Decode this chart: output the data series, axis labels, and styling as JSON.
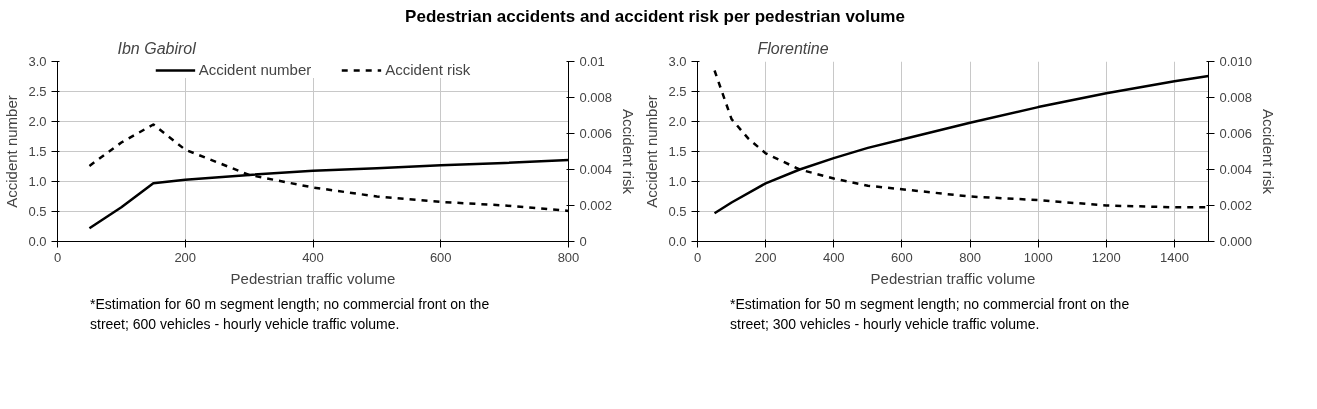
{
  "chart_data": [
    {
      "type": "line",
      "title": "Pedestrian accidents and accident risk per pedestrian volume",
      "subtitle": "Ibn Gabirol",
      "xlabel": "Pedestrian traffic volume",
      "ylabel": "Accident number",
      "y2label": "Accident risk",
      "annotations": [
        "*Estimation for 60 m segment length; no commercial front on the street; 600 vehicles - hourly vehicle traffic volume."
      ],
      "xlim": [
        0,
        800
      ],
      "xticks": [
        0,
        200,
        400,
        600,
        800
      ],
      "ylim": [
        0,
        3
      ],
      "yticks": [
        {
          "value": 0,
          "label": "0.0"
        },
        {
          "value": 0.5,
          "label": "0.5"
        },
        {
          "value": 1,
          "label": "1.0"
        },
        {
          "value": 1.5,
          "label": "1.5"
        },
        {
          "value": 2,
          "label": "2.0"
        },
        {
          "value": 2.5,
          "label": "2.5"
        },
        {
          "value": 3,
          "label": "3.0"
        }
      ],
      "y2lim": [
        0,
        0.01
      ],
      "y2ticks": [
        0,
        0.002,
        0.004,
        0.006,
        0.008,
        0.01
      ],
      "grid": true,
      "legend": "top",
      "series": [
        {
          "name": "Accident number",
          "color": "#000000",
          "line_style": "solid",
          "x": [
            50,
            100,
            150,
            200,
            300,
            400,
            500,
            600,
            700,
            800
          ],
          "values": [
            0.22,
            0.57,
            0.97,
            1.03,
            1.11,
            1.18,
            1.22,
            1.27,
            1.31,
            1.36
          ]
        },
        {
          "name": "Accident risk",
          "color": "#000000",
          "line_style": "dashed",
          "axis": "y2",
          "x": [
            50,
            100,
            150,
            200,
            250,
            300,
            400,
            500,
            600,
            700,
            800
          ],
          "values": [
            0.0042,
            0.0055,
            0.0065,
            0.0051,
            0.0044,
            0.0037,
            0.003,
            0.0025,
            0.0022,
            0.002,
            0.0017
          ]
        }
      ]
    },
    {
      "type": "line",
      "subtitle": "Florentine",
      "xlabel": "Pedestrian traffic volume",
      "ylabel": "Accident number",
      "y2label": "Accident risk",
      "annotations": [
        "*Estimation for 50 m segment length; no commercial front on the street; 300 vehicles - hourly vehicle traffic volume."
      ],
      "xlim": [
        0,
        1500
      ],
      "xticks": [
        0,
        200,
        400,
        600,
        800,
        1000,
        1200,
        1400
      ],
      "ylim": [
        0,
        3
      ],
      "yticks": [
        {
          "value": 0,
          "label": "0.0"
        },
        {
          "value": 0.5,
          "label": "0.5"
        },
        {
          "value": 1,
          "label": "1.0"
        },
        {
          "value": 1.5,
          "label": "1.5"
        },
        {
          "value": 2,
          "label": "2.0"
        },
        {
          "value": 2.5,
          "label": "2.5"
        },
        {
          "value": 3,
          "label": "3.0"
        }
      ],
      "y2lim": [
        0,
        0.01
      ],
      "y2ticks": [
        {
          "value": 0,
          "label": "0.000"
        },
        0.002,
        0.004,
        0.006,
        0.008,
        {
          "value": 0.01,
          "label": "0.010"
        }
      ],
      "grid": true,
      "series": [
        {
          "color": "#000000",
          "line_style": "solid",
          "x": [
            50,
            100,
            200,
            300,
            400,
            500,
            600,
            800,
            1000,
            1200,
            1400,
            1500
          ],
          "values": [
            0.47,
            0.65,
            0.97,
            1.2,
            1.39,
            1.56,
            1.7,
            1.98,
            2.24,
            2.47,
            2.67,
            2.76
          ]
        },
        {
          "color": "#000000",
          "line_style": "dashed",
          "axis": "y2",
          "x": [
            50,
            100,
            150,
            200,
            300,
            400,
            500,
            600,
            800,
            1000,
            1200,
            1400,
            1500
          ],
          "values": [
            0.0095,
            0.0068,
            0.0057,
            0.0049,
            0.004,
            0.0035,
            0.0031,
            0.0029,
            0.0025,
            0.0023,
            0.002,
            0.0019,
            0.0019
          ]
        }
      ]
    }
  ]
}
